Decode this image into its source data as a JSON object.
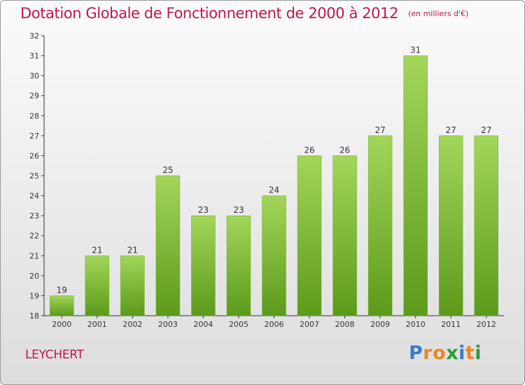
{
  "title": "Dotation Globale de Fonctionnement de 2000 à 2012",
  "unit": "(en milliers d'€)",
  "commune": "LEYCHERT",
  "logo": {
    "text": "Proxiti",
    "colors": [
      "#3a7ac8",
      "#e8862a",
      "#e8862a",
      "#2f9a3a",
      "#3a7ac8",
      "#e8862a",
      "#2f9a3a"
    ]
  },
  "colors": {
    "title": "#c0174b",
    "bar_light": "#a3d65a",
    "bar_dark": "#5c9a1a",
    "axis": "#333333"
  },
  "chart_data": {
    "type": "bar",
    "title": "Dotation Globale de Fonctionnement de 2000 à 2012",
    "subtitle": "(en milliers d'€)",
    "xlabel": "",
    "ylabel": "",
    "categories": [
      "2000",
      "2001",
      "2002",
      "2003",
      "2004",
      "2005",
      "2006",
      "2007",
      "2008",
      "2009",
      "2010",
      "2011",
      "2012"
    ],
    "values": [
      19,
      21,
      21,
      25,
      23,
      23,
      24,
      26,
      26,
      27,
      31,
      27,
      27
    ],
    "ylim": [
      18,
      32
    ],
    "yticks": [
      18,
      19,
      20,
      21,
      22,
      23,
      24,
      25,
      26,
      27,
      28,
      29,
      30,
      31,
      32
    ],
    "data_labels": true,
    "grid": false,
    "legend": "none"
  }
}
